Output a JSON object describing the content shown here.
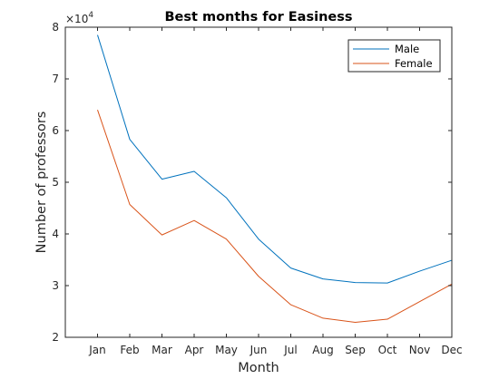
{
  "chart_data": {
    "type": "line",
    "title": "Best months for Easiness",
    "xlabel": "Month",
    "ylabel": "Number of professors",
    "y_exponent_base": "×10",
    "y_exponent_power": "4",
    "categories": [
      "Jan",
      "Feb",
      "Mar",
      "Apr",
      "May",
      "Jun",
      "Jul",
      "Aug",
      "Sep",
      "Oct",
      "Nov",
      "Dec"
    ],
    "xlim": [
      0,
      12
    ],
    "ylim": [
      20000,
      80000
    ],
    "yticks": [
      20000,
      30000,
      40000,
      50000,
      60000,
      70000,
      80000
    ],
    "ytick_labels": [
      "2",
      "3",
      "4",
      "5",
      "6",
      "7",
      "8"
    ],
    "grid": false,
    "legend_position": "top-right",
    "series": [
      {
        "name": "Male",
        "color": "#0072BD",
        "values": [
          78500,
          58300,
          50600,
          52100,
          47000,
          39000,
          33400,
          31300,
          30600,
          30500,
          32800,
          34900
        ]
      },
      {
        "name": "Female",
        "color": "#D95319",
        "values": [
          64000,
          45700,
          39800,
          42600,
          39000,
          31800,
          26300,
          23700,
          22900,
          23500,
          26900,
          30300
        ]
      }
    ]
  }
}
